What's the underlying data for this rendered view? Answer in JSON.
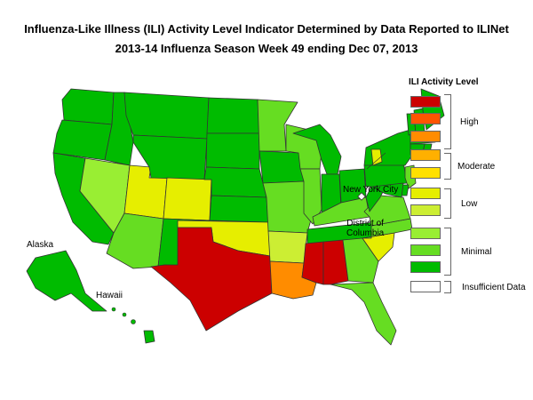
{
  "title_line1": "Influenza-Like Illness (ILI) Activity Level Indicator Determined by Data Reported to ILINet",
  "title_line2": "2013-14  Influenza Season Week  49 ending Dec 07, 2013",
  "map_labels": {
    "alaska": "Alaska",
    "hawaii": "Hawaii",
    "nyc": "New York City",
    "dc_line1": "District of",
    "dc_line2": "Columbia"
  },
  "legend": {
    "title": "ILI Activity Level",
    "levels": [
      {
        "level": 10,
        "color": "#cc0000"
      },
      {
        "level": 9,
        "color": "#ff5500"
      },
      {
        "level": 8,
        "color": "#ff8c00"
      },
      {
        "level": 7,
        "color": "#ffb000"
      },
      {
        "level": 6,
        "color": "#ffe000"
      },
      {
        "level": 5,
        "color": "#e6ee00"
      },
      {
        "level": 4,
        "color": "#ccee33"
      },
      {
        "level": 3,
        "color": "#99ee33"
      },
      {
        "level": 2,
        "color": "#66dd22"
      },
      {
        "level": 1,
        "color": "#00bb00"
      },
      {
        "level": 0,
        "color": "#ffffff"
      }
    ],
    "groups": {
      "high": "High",
      "moderate": "Moderate",
      "low": "Low",
      "minimal": "Minimal",
      "insufficient": "Insufficient Data"
    }
  },
  "state_levels": {
    "WA": 1,
    "OR": 1,
    "CA": 1,
    "ID": 1,
    "NV": 3,
    "UT": 5,
    "AZ": 2,
    "MT": 1,
    "WY": 1,
    "CO": 5,
    "NM": 1,
    "ND": 1,
    "SD": 1,
    "NE": 1,
    "KS": 1,
    "OK": 5,
    "TX": 10,
    "MN": 2,
    "IA": 1,
    "MO": 2,
    "AR": 4,
    "LA": 8,
    "WI": 2,
    "IL": 2,
    "MI": 1,
    "IN": 1,
    "OH": 1,
    "KY": 2,
    "TN": 1,
    "MS": 10,
    "AL": 10,
    "GA": 2,
    "FL": 2,
    "SC": 5,
    "NC": 2,
    "VA": 2,
    "WV": 1,
    "PA": 1,
    "NY": 1,
    "VT": 1,
    "NH": 1,
    "ME": 1,
    "MA": 1,
    "CT": 1,
    "RI": 1,
    "NJ": 2,
    "DE": 1,
    "MD": 1,
    "AK": 1,
    "HI": 1,
    "NYC": 5,
    "DC": 0
  }
}
